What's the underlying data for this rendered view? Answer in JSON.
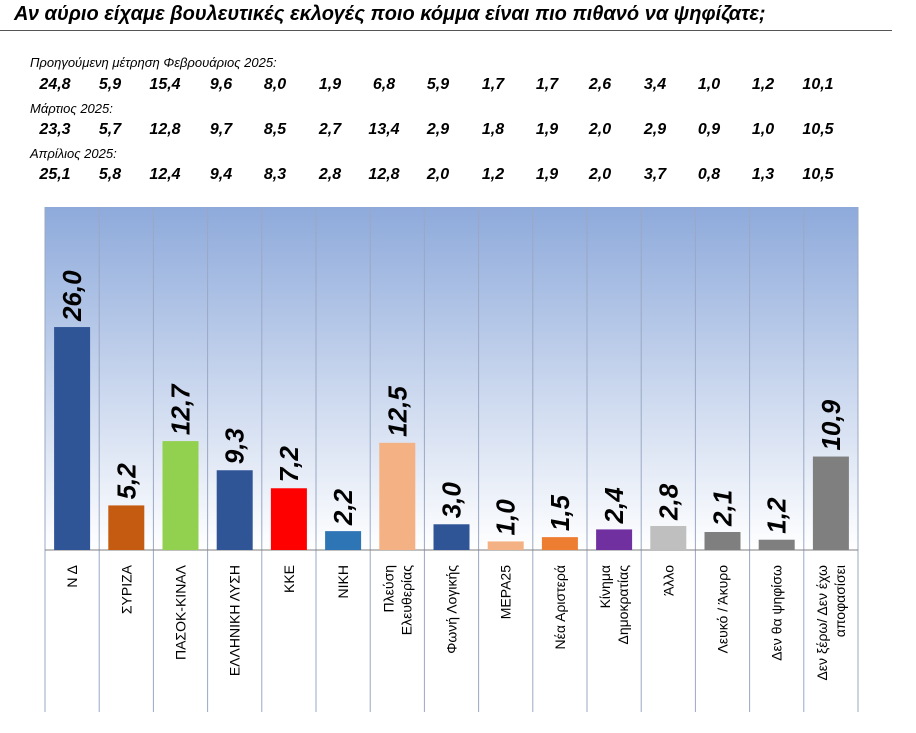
{
  "title": "Αν αύριο είχαμε βουλευτικές εκλογές ποιο κόμμα είναι πιο πιθανό να ψηφίζατε;",
  "previous": [
    {
      "label": "Προηγούμενη μέτρηση Φεβρουάριος 2025:",
      "values": [
        "24,8",
        "5,9",
        "15,4",
        "9,6",
        "8,0",
        "1,9",
        "6,8",
        "5,9",
        "1,7",
        "1,7",
        "2,6",
        "3,4",
        "1,0",
        "1,2",
        "10,1"
      ]
    },
    {
      "label": "Μάρτιος 2025:",
      "values": [
        "23,3",
        "5,7",
        "12,8",
        "9,7",
        "8,5",
        "2,7",
        "13,4",
        "2,9",
        "1,8",
        "1,9",
        "2,0",
        "2,9",
        "0,9",
        "1,0",
        "10,5"
      ]
    },
    {
      "label": "Απρίλιος 2025:",
      "values": [
        "25,1",
        "5,8",
        "12,4",
        "9,4",
        "8,3",
        "2,8",
        "12,8",
        "2,0",
        "1,2",
        "1,9",
        "2,0",
        "3,7",
        "0,8",
        "1,3",
        "10,5"
      ]
    }
  ],
  "chart_data": {
    "type": "bar",
    "categories": [
      [
        "Ν Δ"
      ],
      [
        "ΣΥΡΙΖΑ"
      ],
      [
        "ΠΑΣΟΚ-ΚΙΝΑΛ"
      ],
      [
        "ΕΛΛΗΝΙΚΗ ΛΥΣΗ"
      ],
      [
        "ΚΚΕ"
      ],
      [
        "ΝΙΚΗ"
      ],
      [
        "Πλεύση",
        "Ελευθερίας"
      ],
      [
        "Φωνή Λογικής"
      ],
      [
        "ΜΕΡΑ25"
      ],
      [
        "Νέα Αριστερά"
      ],
      [
        "Κίνημα",
        "Δημοκρατίας"
      ],
      [
        "Άλλο"
      ],
      [
        "Λευκό / Άκυρο"
      ],
      [
        "Δεν θα ψηφίσω"
      ],
      [
        "Δεν ξέρω/ Δεν έχω",
        "αποφασίσει"
      ]
    ],
    "values": [
      26.0,
      5.2,
      12.7,
      9.3,
      7.2,
      2.2,
      12.5,
      3.0,
      1.0,
      1.5,
      2.4,
      2.8,
      2.1,
      1.2,
      10.9
    ],
    "labels": [
      "26,0",
      "5,2",
      "12,7",
      "9,3",
      "7,2",
      "2,2",
      "12,5",
      "3,0",
      "1,0",
      "1,5",
      "2,4",
      "2,8",
      "2,1",
      "1,2",
      "10,9"
    ],
    "colors": [
      "#2f5597",
      "#c55a11",
      "#92d050",
      "#2f5597",
      "#ff0000",
      "#2e75b6",
      "#f4b183",
      "#2f5597",
      "#f4b183",
      "#ed7d31",
      "#7030a0",
      "#bfbfbf",
      "#7f7f7f",
      "#7f7f7f",
      "#7f7f7f"
    ],
    "ylim": [
      0,
      40
    ],
    "grid": false,
    "background": [
      "#8eaadb",
      "#ffffff"
    ]
  }
}
